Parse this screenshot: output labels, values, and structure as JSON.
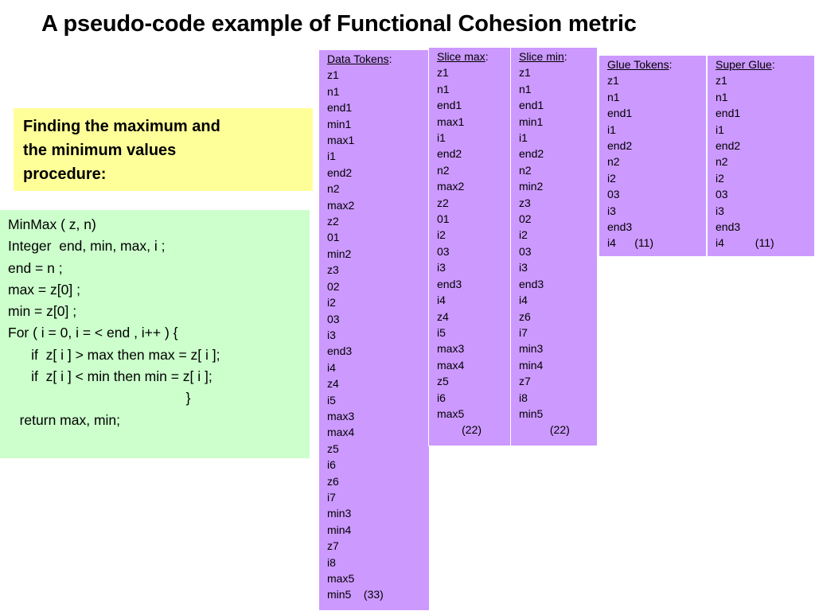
{
  "title": "A pseudo-code example of Functional Cohesion metric",
  "description_box": {
    "lines": [
      "Finding the maximum and",
      "the minimum values",
      "procedure:"
    ]
  },
  "code": {
    "lines": [
      "MinMax ( z, n)",
      "Integer  end, min, max, i ;",
      "end = n ;",
      "max = z[0] ;",
      "min = z[0] ;",
      "For ( i = 0, i = < end , i++ ) {",
      "      if  z[ i ] > max then max = z[ i ];",
      "      if  z[ i ] < min then min = z[ i ];",
      "                                              }",
      "   return max, min;"
    ]
  },
  "columns": {
    "data_tokens": {
      "label": "Data Tokens",
      "tokens": [
        "z1",
        "n1",
        "end1",
        "min1",
        "max1",
        "i1",
        "end2",
        "n2",
        "max2",
        "z2",
        "01",
        "min2",
        "z3",
        "02",
        "i2",
        "03",
        "i3",
        "end3",
        "i4",
        "z4",
        "i5",
        "max3",
        "max4",
        "z5",
        "i6",
        "z6",
        "i7",
        "min3",
        "min4",
        "z7",
        "i8",
        "max5"
      ],
      "last_line": "min5    (33)"
    },
    "slice_max": {
      "label": "Slice max",
      "tokens": [
        "z1",
        "n1",
        "end1",
        "max1",
        "i1",
        "end2",
        "n2",
        "max2",
        "z2",
        "01",
        "i2",
        "03",
        "i3",
        "end3",
        "i4",
        "z4",
        "i5",
        "max3",
        "max4",
        "z5",
        "i6",
        "max5"
      ],
      "count": "        (22)"
    },
    "slice_min": {
      "label": "Slice min",
      "tokens": [
        "z1",
        "n1",
        "end1",
        "min1",
        "i1",
        "end2",
        "n2",
        "min2",
        "z3",
        "02",
        "i2",
        "03",
        "i3",
        "end3",
        "i4",
        "z6",
        "i7",
        "min3",
        "min4",
        "z7",
        "i8",
        "min5"
      ],
      "count": "          (22)"
    },
    "glue_tokens": {
      "label": "Glue Tokens",
      "tokens": [
        "z1",
        "n1",
        "end1",
        "i1",
        "end2",
        "n2",
        "i2",
        "03",
        "i3",
        "end3"
      ],
      "last_line": "i4      (11)"
    },
    "super_glue": {
      "label": "Super Glue",
      "tokens": [
        "z1",
        "n1",
        "end1",
        "i1",
        "end2",
        "n2",
        "i2",
        "03",
        "i3",
        "end3"
      ],
      "last_line": "i4          (11)"
    }
  }
}
